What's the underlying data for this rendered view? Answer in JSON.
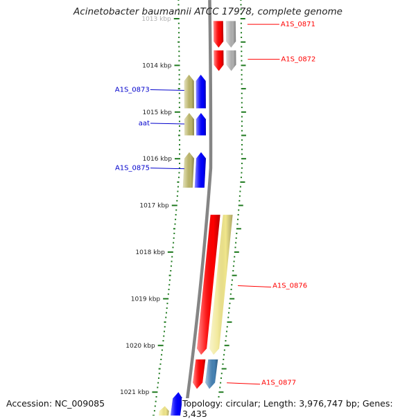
{
  "title": "Acinetobacter baumannii ATCC 17978, complete genome",
  "footer": {
    "accession": "Accession: NC_009085",
    "summary": "Topology: circular; Length: 3,976,747 bp; Genes: 3,435"
  },
  "colors": {
    "backbone": "#858585",
    "ticks": "#1f7a1f",
    "cds_forward": "#ff0000",
    "cds_reverse": "#0000ff",
    "gene_forward": "#f0e68c",
    "gene_reverse": "#bdb76b",
    "trna": "#4682b4",
    "other_gene": "#b0b0b0",
    "label_forward": "#ff0000",
    "label_reverse": "#0000cc"
  },
  "kbp_labels": [
    "1013 kbp",
    "1014 kbp",
    "1015 kbp",
    "1016 kbp",
    "1017 kbp",
    "1018 kbp",
    "1019 kbp",
    "1020 kbp",
    "1021 kbp"
  ],
  "features": [
    {
      "strand": "+",
      "track": "cds",
      "type": "cds_forward",
      "start": 1013.05,
      "end": 1013.62
    },
    {
      "strand": "+",
      "track": "gene",
      "type": "other_gene",
      "start": 1013.05,
      "end": 1013.62
    },
    {
      "strand": "+",
      "track": "cds",
      "type": "cds_forward",
      "start": 1013.68,
      "end": 1014.12
    },
    {
      "strand": "+",
      "track": "gene",
      "type": "other_gene",
      "start": 1013.68,
      "end": 1014.12
    },
    {
      "strand": "-",
      "track": "cds",
      "type": "cds_reverse",
      "start": 1014.2,
      "end": 1014.92
    },
    {
      "strand": "-",
      "track": "gene",
      "type": "gene_reverse",
      "start": 1014.2,
      "end": 1014.92
    },
    {
      "strand": "-",
      "track": "cds",
      "type": "cds_reverse",
      "start": 1015.02,
      "end": 1015.5
    },
    {
      "strand": "-",
      "track": "gene",
      "type": "gene_reverse",
      "start": 1015.02,
      "end": 1015.5
    },
    {
      "strand": "-",
      "track": "cds",
      "type": "cds_reverse",
      "start": 1015.86,
      "end": 1016.62
    },
    {
      "strand": "-",
      "track": "gene",
      "type": "gene_reverse",
      "start": 1015.86,
      "end": 1016.62
    },
    {
      "strand": "+",
      "track": "cds",
      "type": "cds_forward",
      "start": 1017.2,
      "end": 1020.2
    },
    {
      "strand": "+",
      "track": "gene",
      "type": "gene_forward",
      "start": 1017.2,
      "end": 1020.2
    },
    {
      "strand": "+",
      "track": "cds",
      "type": "cds_forward",
      "start": 1020.3,
      "end": 1020.93
    },
    {
      "strand": "+",
      "track": "gene",
      "type": "trna",
      "start": 1020.3,
      "end": 1020.93
    },
    {
      "strand": "-",
      "track": "cds",
      "type": "cds_reverse",
      "start": 1021.0,
      "end": 1021.6
    },
    {
      "strand": "-",
      "track": "gene",
      "type": "gene_forward",
      "start": 1021.3,
      "end": 1021.6
    }
  ],
  "gene_labels": [
    {
      "text": "A1S_0871",
      "strand": "+",
      "position": 1013.12
    },
    {
      "text": "A1S_0872",
      "strand": "+",
      "position": 1013.87
    },
    {
      "text": "A1S_0873",
      "strand": "-",
      "position": 1014.52
    },
    {
      "text": "aat",
      "strand": "-",
      "position": 1015.24
    },
    {
      "text": "A1S_0875",
      "strand": "-",
      "position": 1016.2
    },
    {
      "text": "A1S_0876",
      "strand": "+",
      "position": 1018.72
    },
    {
      "text": "A1S_0877",
      "strand": "+",
      "position": 1020.8
    }
  ]
}
